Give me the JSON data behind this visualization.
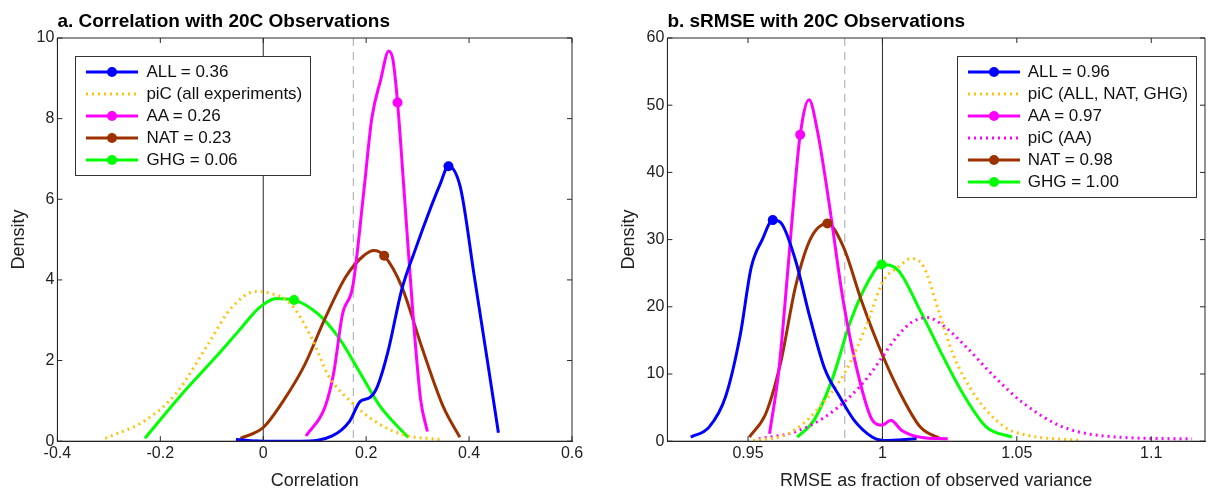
{
  "chart_data": [
    {
      "type": "line",
      "title": "a. Correlation with 20C Observations",
      "xlabel": "Correlation",
      "ylabel": "Density",
      "xlim": [
        -0.4,
        0.6
      ],
      "xticks": [
        -0.4,
        -0.2,
        0,
        0.2,
        0.4,
        0.6
      ],
      "ylim": [
        0,
        10
      ],
      "yticks": [
        0,
        2,
        4,
        6,
        8,
        10
      ],
      "legend": "top left",
      "marker": "none",
      "line_style": "solid",
      "ref_lines": [
        {
          "axis": "x",
          "value": 0,
          "color": "#262626",
          "line_style": "solid"
        },
        {
          "axis": "x",
          "value": 0.175,
          "color": "#a6a6a6",
          "line_style": "dashed"
        }
      ],
      "series": [
        {
          "name": "ALL = 0.36",
          "color": "#0000ff",
          "x": [
            -0.053,
            0,
            0.073,
            0.134,
            0.168,
            0.188,
            0.208,
            0.222,
            0.242,
            0.269,
            0.296,
            0.323,
            0.343,
            0.36,
            0.383,
            0.41,
            0.437,
            0.457
          ],
          "values": [
            0.04,
            0,
            0,
            0.13,
            0.5,
            0.98,
            1.09,
            1.36,
            2.2,
            3.75,
            4.77,
            5.71,
            6.35,
            6.82,
            6.3,
            4.1,
            1.88,
            0.21
          ]
        },
        {
          "type": "scatter",
          "marker": "circle",
          "color": "#0000ff",
          "x": [
            0.36
          ],
          "values": [
            6.82
          ]
        },
        {
          "name": "piC (all experiments)",
          "color": "#ffc20e",
          "line_style": "dotted",
          "x": [
            -0.307,
            -0.23,
            -0.169,
            -0.108,
            -0.061,
            -0.014,
            0.013,
            0.053,
            0.094,
            0.127,
            0.174,
            0.215,
            0.269,
            0.343
          ],
          "values": [
            0.07,
            0.51,
            1.19,
            2.39,
            3.32,
            3.71,
            3.67,
            3.41,
            2.56,
            1.62,
            0.94,
            0.51,
            0.17,
            0.04
          ]
        },
        {
          "name": "AA = 0.26",
          "color": "#ff00ff",
          "x": [
            0.083,
            0.12,
            0.137,
            0.154,
            0.174,
            0.195,
            0.211,
            0.228,
            0.244,
            0.252,
            0.261,
            0.275,
            0.292,
            0.306,
            0.319
          ],
          "values": [
            0.13,
            0.85,
            1.7,
            3.15,
            3.84,
            6.14,
            8.01,
            8.95,
            9.68,
            9.46,
            8.4,
            5.97,
            2.98,
            1.02,
            0.24
          ]
        },
        {
          "type": "scatter",
          "marker": "circle",
          "color": "#ff00ff",
          "x": [
            0.261
          ],
          "values": [
            8.4
          ]
        },
        {
          "name": "NAT = 0.23",
          "color": "#9c3200",
          "x": [
            -0.044,
            0,
            0.04,
            0.08,
            0.121,
            0.161,
            0.195,
            0.215,
            0.235,
            0.269,
            0.309,
            0.35,
            0.382
          ],
          "values": [
            0.07,
            0.34,
            1.02,
            1.88,
            3.07,
            4.09,
            4.6,
            4.73,
            4.6,
            3.84,
            2.3,
            0.85,
            0.1
          ]
        },
        {
          "type": "scatter",
          "marker": "circle",
          "color": "#9c3200",
          "x": [
            0.235
          ],
          "values": [
            4.6
          ]
        },
        {
          "name": "GHG = 0.06",
          "color": "#00ff00",
          "x": [
            -0.23,
            -0.162,
            -0.095,
            -0.048,
            -0.007,
            0.026,
            0.06,
            0.107,
            0.147,
            0.188,
            0.228,
            0.282
          ],
          "values": [
            0.07,
            1.11,
            2.05,
            2.73,
            3.32,
            3.54,
            3.5,
            3.15,
            2.56,
            1.7,
            0.85,
            0.09
          ]
        },
        {
          "type": "scatter",
          "marker": "circle",
          "color": "#00ff00",
          "x": [
            0.06
          ],
          "values": [
            3.5
          ]
        }
      ]
    },
    {
      "type": "line",
      "title": "b. sRMSE with 20C Observations",
      "xlabel": "RMSE as fraction of observed variance",
      "ylabel": "Density",
      "xlim": [
        0.92,
        1.12
      ],
      "xticks": [
        0.95,
        1,
        1.05,
        1.1
      ],
      "ylim": [
        0,
        60
      ],
      "yticks": [
        0,
        10,
        20,
        30,
        40,
        50,
        60
      ],
      "legend": "top right",
      "marker": "none",
      "line_style": "solid",
      "ref_lines": [
        {
          "axis": "x",
          "value": 1,
          "color": "#262626",
          "line_style": "solid"
        },
        {
          "axis": "x",
          "value": 0.986,
          "color": "#a6a6a6",
          "line_style": "dashed"
        }
      ],
      "series": [
        {
          "name": "ALL = 0.96",
          "color": "#0000ff",
          "x": [
            0.9287,
            0.9355,
            0.9417,
            0.9471,
            0.9512,
            0.9553,
            0.9592,
            0.9622,
            0.9676,
            0.9731,
            0.9786,
            0.984,
            0.9895,
            0.9963,
            1.0004,
            1.0127
          ],
          "values": [
            0.6,
            2.1,
            6.7,
            15.8,
            25.9,
            30,
            32.9,
            32.5,
            27,
            18.3,
            10.7,
            6.7,
            3.1,
            0.6,
            0.1,
            0.35
          ]
        },
        {
          "type": "scatter",
          "marker": "circle",
          "color": "#0000ff",
          "x": [
            0.9592
          ],
          "values": [
            32.9
          ]
        },
        {
          "name": "piC (ALL, NAT, GHG)",
          "color": "#ffc20e",
          "line_style": "dotted",
          "x": [
            0.9519,
            0.9649,
            0.9758,
            0.9867,
            0.9936,
            1.0004,
            1.0059,
            1.0107,
            1.0154,
            1.0209,
            1.0264,
            1.0346,
            1.0455,
            1.0537,
            1.0742
          ],
          "values": [
            0.1,
            1.1,
            4.7,
            10.7,
            16.8,
            23.9,
            25.9,
            27.2,
            25.9,
            19.4,
            12.8,
            6.7,
            2.1,
            0.9,
            0.1
          ]
        },
        {
          "name": "AA = 0.97",
          "color": "#ff00ff",
          "x": [
            0.958,
            0.9615,
            0.9649,
            0.9676,
            0.9694,
            0.9727,
            0.9758,
            0.9799,
            0.9854,
            0.9908,
            0.9963,
            1.0,
            1.0031,
            1.0072,
            1.0141,
            1.0243
          ],
          "values": [
            1.1,
            10.7,
            25.9,
            38.6,
            45.6,
            50.8,
            46.2,
            36.1,
            20.9,
            10.2,
            3.1,
            2.4,
            3.1,
            1.6,
            0.6,
            0.35
          ]
        },
        {
          "type": "scatter",
          "marker": "circle",
          "color": "#ff00ff",
          "x": [
            0.9694
          ],
          "values": [
            45.6
          ]
        },
        {
          "name": "piC (AA)",
          "color": "#ff00ff",
          "line_style": "dotted",
          "x": [
            0.954,
            0.9676,
            0.9786,
            0.9881,
            0.9949,
            1.0004,
            1.0059,
            1.0113,
            1.0168,
            1.0223,
            1.0305,
            1.0414,
            1.0523,
            1.0673,
            1.0878,
            1.1152
          ],
          "values": [
            0.35,
            1.4,
            3.6,
            6.7,
            9.7,
            12.8,
            15.8,
            17.8,
            18.4,
            17.3,
            14.3,
            9.7,
            5.7,
            2.1,
            0.6,
            0.35
          ]
        },
        {
          "name": "NAT = 0.98",
          "color": "#9c3200",
          "x": [
            0.9505,
            0.9567,
            0.9622,
            0.9676,
            0.9731,
            0.9795,
            0.9854,
            0.9922,
            0.999,
            1.0059,
            1.0141,
            1.0216
          ],
          "values": [
            0.6,
            4.2,
            11.8,
            22.9,
            30,
            32.4,
            29,
            20.9,
            13.8,
            7.7,
            2.1,
            0.35
          ]
        },
        {
          "type": "scatter",
          "marker": "circle",
          "color": "#9c3200",
          "x": [
            0.9795
          ],
          "values": [
            32.4
          ]
        },
        {
          "name": "GHG = 1.00",
          "color": "#00ff00",
          "x": [
            0.9683,
            0.9745,
            0.9813,
            0.9881,
            0.9949,
            0.9997,
            1.0059,
            1.0141,
            1.0223,
            1.0305,
            1.0387,
            1.0482
          ],
          "values": [
            0.6,
            3.1,
            9.2,
            17.8,
            23.9,
            26.3,
            25.4,
            19.4,
            12.8,
            6.7,
            2.1,
            0.6
          ]
        },
        {
          "type": "scatter",
          "marker": "circle",
          "color": "#00ff00",
          "x": [
            0.9997
          ],
          "values": [
            26.3
          ]
        }
      ]
    }
  ]
}
